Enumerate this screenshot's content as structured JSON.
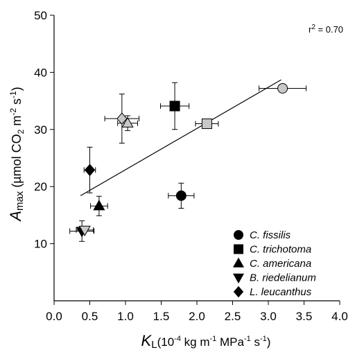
{
  "chart_data": {
    "type": "scatter",
    "x_axis": {
      "label_main": "K",
      "label_sub": "L",
      "label_units_html": [
        "(10",
        "-4",
        " kg m",
        "-1",
        " MPa",
        "-1",
        " s",
        "-1",
        ")"
      ],
      "ticks": [
        "0.0",
        "0.5",
        "1.0",
        "1.5",
        "2.0",
        "2.5",
        "3.0",
        "3.5",
        "4.0"
      ],
      "xlim": [
        0,
        4
      ]
    },
    "y_axis": {
      "label_main": "A",
      "label_sub": "max",
      "label_units_parts": [
        " (µmol CO",
        "2",
        " m",
        "-2",
        " s",
        "-1",
        ")"
      ],
      "ticks": [
        "10",
        "20",
        "30",
        "40",
        "50"
      ],
      "ylim": [
        0,
        50
      ]
    },
    "annotation": {
      "text_main": "r",
      "text_sup": "2",
      "text_rest": " = 0.70"
    },
    "series": [
      {
        "name": "C. fissilis",
        "marker": "circle",
        "points": [
          {
            "x": 1.78,
            "y": 18.4,
            "xerr": 0.18,
            "yerr": 2.2,
            "fill": "#000000"
          },
          {
            "x": 3.2,
            "y": 37.2,
            "xerr": 0.33,
            "yerr": 0.0,
            "fill": "#c8c8c8"
          }
        ]
      },
      {
        "name": "C. trichotoma",
        "marker": "square",
        "points": [
          {
            "x": 1.69,
            "y": 34.1,
            "xerr": 0.2,
            "yerr": 4.1,
            "fill": "#000000"
          },
          {
            "x": 2.14,
            "y": 31.0,
            "xerr": 0.16,
            "yerr": 0.0,
            "fill": "#c8c8c8"
          }
        ]
      },
      {
        "name": "C. americana",
        "marker": "triangle-up",
        "points": [
          {
            "x": 0.63,
            "y": 16.6,
            "xerr": 0.12,
            "yerr": 1.7,
            "fill": "#000000"
          },
          {
            "x": 1.03,
            "y": 31.1,
            "xerr": 0.14,
            "yerr": 1.3,
            "fill": "#c8c8c8"
          }
        ]
      },
      {
        "name": "B. riedelianum",
        "marker": "triangle-down",
        "points": [
          {
            "x": 0.39,
            "y": 12.2,
            "xerr": 0.17,
            "yerr": 1.8,
            "fill": "#000000"
          },
          {
            "x": 0.43,
            "y": 12.4,
            "xerr": 0.12,
            "yerr": 0.0,
            "fill": "#c8c8c8"
          }
        ]
      },
      {
        "name": "L. leucanthus",
        "marker": "diamond",
        "points": [
          {
            "x": 0.5,
            "y": 22.9,
            "xerr": 0.08,
            "yerr": 4.0,
            "fill": "#000000"
          },
          {
            "x": 0.95,
            "y": 31.9,
            "xerr": 0.24,
            "yerr": 4.3,
            "fill": "#c8c8c8"
          }
        ]
      }
    ],
    "regression_line": {
      "x": [
        0.37,
        3.18
      ],
      "y": [
        18.4,
        38.7
      ]
    },
    "legend_position": "bottom-right",
    "grid": false
  }
}
